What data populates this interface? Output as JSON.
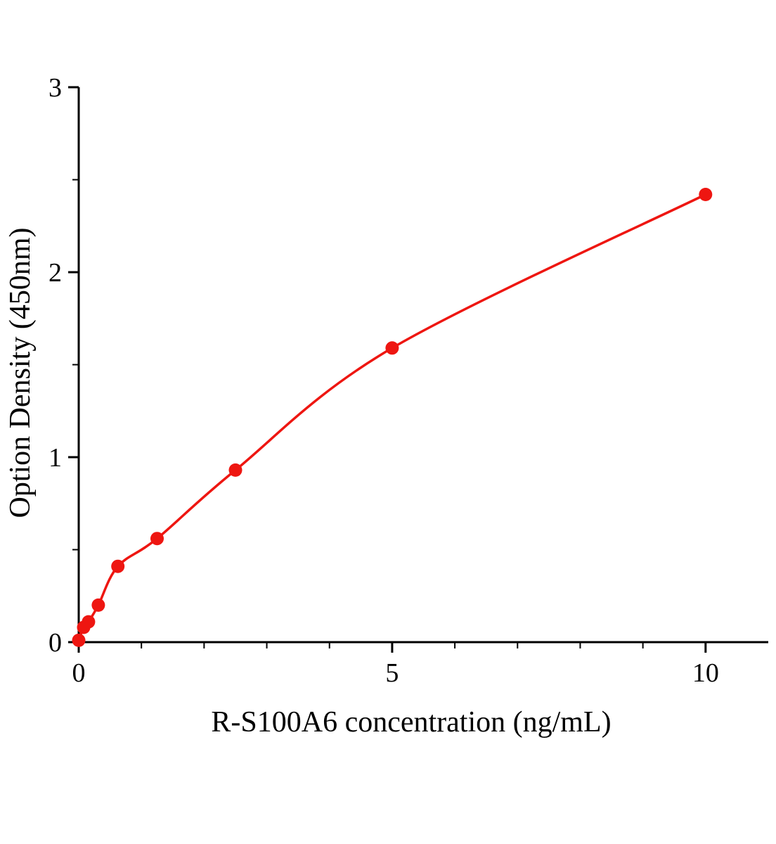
{
  "chart_data": {
    "type": "scatter",
    "title": "",
    "xlabel": "R-S100A6 concentration (ng/mL)",
    "ylabel": "Option Density (450nm)",
    "x": [
      0,
      0.078,
      0.156,
      0.3125,
      0.625,
      1.25,
      2.5,
      5,
      10
    ],
    "y": [
      0.01,
      0.08,
      0.11,
      0.2,
      0.41,
      0.56,
      0.93,
      1.59,
      2.42
    ],
    "curve_style": "smooth fitted curve through points",
    "grid": false,
    "legend": null,
    "x_axis": {
      "lim": [
        0,
        11
      ],
      "major_ticks": [
        0,
        5,
        10
      ],
      "tick_labels": [
        "0",
        "5",
        "10"
      ],
      "minor_ticks": [
        1,
        2,
        3,
        4,
        6,
        7,
        8,
        9
      ]
    },
    "y_axis": {
      "lim": [
        0,
        3
      ],
      "major_ticks": [
        0,
        1,
        2,
        3
      ],
      "tick_labels": [
        "0",
        "1",
        "2",
        "3"
      ],
      "minor_ticks": [
        0.5,
        1.5,
        2.5
      ]
    },
    "colors": {
      "point": "#ee1611",
      "line": "#ee1611",
      "axis": "#000000",
      "background": "#ffffff"
    }
  }
}
